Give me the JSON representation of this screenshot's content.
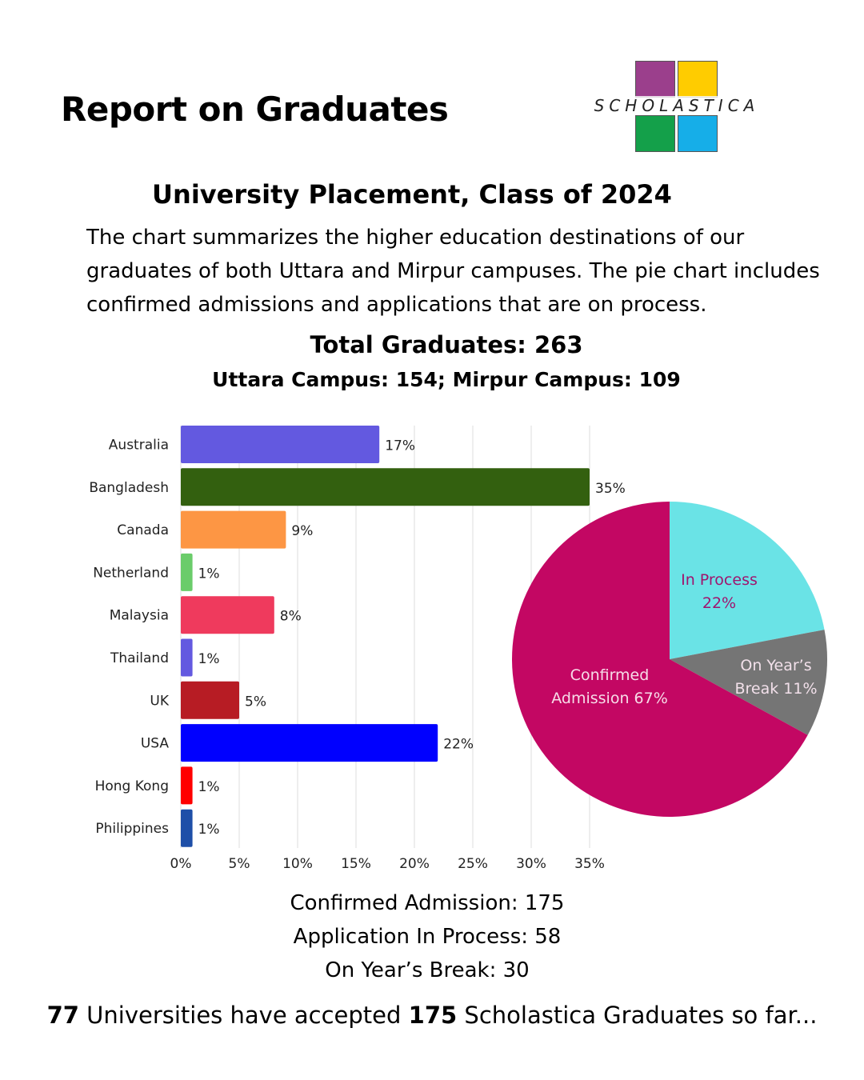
{
  "header": {
    "title": "Report on Graduates",
    "logo_text": "SCHOLASTICA"
  },
  "section": {
    "subtitle": "University Placement, Class of 2024",
    "description": "The chart summarizes the higher education destinations of our graduates of both Uttara and Mirpur campuses. The pie chart includes confirmed admissions and applications that are on process.",
    "total": "Total Graduates: 263",
    "campus": "Uttara Campus: 154; Mirpur Campus: 109"
  },
  "summary": [
    "Confirmed Admission: 175",
    "Application In Process: 58",
    "On Year’s Break: 30"
  ],
  "footer": {
    "count1": "77",
    "text1": " Universities have accepted ",
    "count2": "175",
    "text2": " Scholastica Graduates so far..."
  },
  "colors": {
    "logo": [
      "#9b3f8c",
      "#ffcc00",
      "#14a04a",
      "#16aee8"
    ]
  },
  "chart_data": [
    {
      "type": "bar",
      "orientation": "horizontal",
      "categories": [
        "Australia",
        "Bangladesh",
        "Canada",
        "Netherland",
        "Malaysia",
        "Thailand",
        "UK",
        "USA",
        "Hong Kong",
        "Philippines"
      ],
      "values": [
        17,
        35,
        9,
        1,
        8,
        1,
        5,
        22,
        1,
        1
      ],
      "labels": [
        "17%",
        "35%",
        "9%",
        "1%",
        "8%",
        "1%",
        "5%",
        "22%",
        "1%",
        "1%"
      ],
      "colors": [
        "#6359e0",
        "#33600f",
        "#fd9644",
        "#6acc6a",
        "#ef3a5d",
        "#6359e0",
        "#b71c24",
        "#0000ff",
        "#ff0000",
        "#1e4fa8"
      ],
      "xlim": [
        0,
        35
      ],
      "xticks": [
        "0%",
        "5%",
        "10%",
        "15%",
        "20%",
        "25%",
        "30%",
        "35%"
      ],
      "grid": true
    },
    {
      "type": "pie",
      "slices": [
        {
          "label": "In Process",
          "pct_label": "22%",
          "value": 22,
          "color": "#6ae3e6",
          "text_color": "#a0146e"
        },
        {
          "label": "On Year’s",
          "pct_label": "Break 11%",
          "value": 11,
          "color": "#757575",
          "text_color": "#f2e0ea"
        },
        {
          "label": "Confirmed",
          "pct_label": "Admission 67%",
          "value": 67,
          "color": "#c30763",
          "text_color": "#f7dce8"
        }
      ]
    }
  ]
}
